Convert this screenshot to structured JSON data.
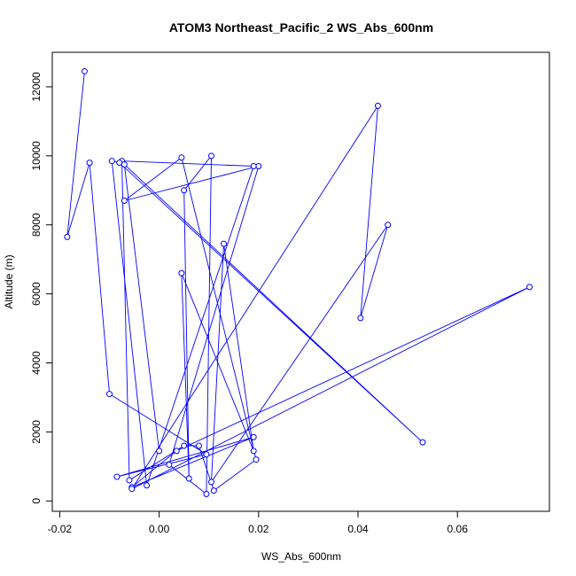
{
  "chart_data": {
    "type": "scatter",
    "title": "ATOM3 Northeast_Pacific_2 WS_Abs_600nm",
    "xlabel": "WS_Abs_600nm",
    "ylabel": "Altitude (m)",
    "xlim": [
      -0.0215,
      0.0785
    ],
    "ylim": [
      -300,
      13000
    ],
    "x_ticks": [
      -0.02,
      0.0,
      0.02,
      0.04,
      0.06
    ],
    "x_tick_labels": [
      "-0.02",
      "0.00",
      "0.02",
      "0.04",
      "0.06"
    ],
    "y_ticks": [
      0,
      2000,
      4000,
      6000,
      8000,
      10000,
      12000
    ],
    "y_tick_labels": [
      "0",
      "2000",
      "4000",
      "6000",
      "8000",
      "10000",
      "12000"
    ],
    "connect_points": true,
    "series": [
      {
        "color": "#0000ff",
        "marker": "open-circle",
        "x": [
          -0.015,
          -0.0185,
          -0.014,
          -0.01,
          0.0095,
          -0.0085,
          0.019,
          -0.0055,
          0.0035,
          0.0745,
          -0.0055,
          0.044,
          0.0405,
          0.046,
          0.0105,
          0.013,
          0.019,
          0.0045,
          0.006,
          0.005,
          0.0105,
          0.0095,
          0.002,
          0.02,
          -0.007,
          0.0045,
          0.0195,
          0.011,
          0.008,
          0.005,
          -0.006,
          -0.0075,
          0.019,
          -0.0025,
          -0.0095,
          -0.008,
          0.053,
          -0.007,
          0.0
        ],
        "y": [
          12450,
          7650,
          9800,
          3100,
          1350,
          700,
          1850,
          400,
          1450,
          6200,
          350,
          11450,
          5300,
          8000,
          550,
          7450,
          1450,
          6600,
          650,
          9000,
          10000,
          200,
          1050,
          9700,
          8700,
          9950,
          1200,
          300,
          1600,
          1600,
          600,
          9850,
          9700,
          450,
          9850,
          9800,
          1700,
          9750,
          1450
        ]
      }
    ]
  }
}
